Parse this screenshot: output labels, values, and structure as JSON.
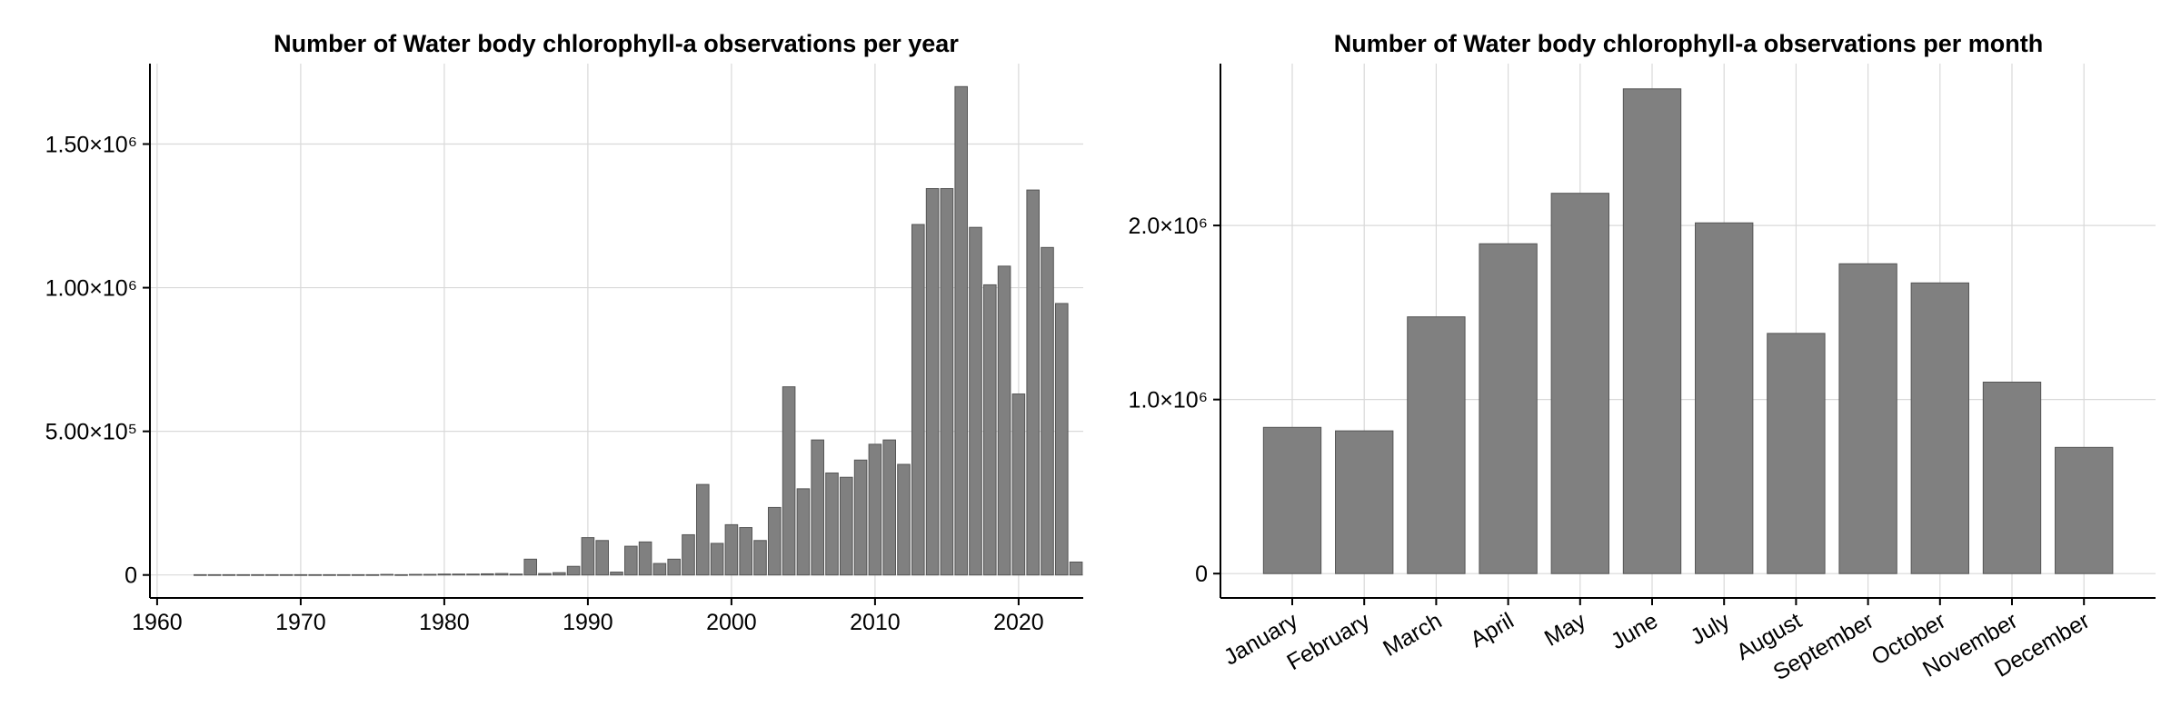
{
  "chart_data": [
    {
      "type": "bar",
      "title": "Number of Water body chlorophyll-a observations per year",
      "xlabel": "",
      "ylabel": "",
      "xlim": [
        1959.5,
        2024.5
      ],
      "ylim": [
        -80000,
        1780000
      ],
      "x_ticks": [
        {
          "value": 1960,
          "label": "1960"
        },
        {
          "value": 1970,
          "label": "1970"
        },
        {
          "value": 1980,
          "label": "1980"
        },
        {
          "value": 1990,
          "label": "1990"
        },
        {
          "value": 2000,
          "label": "2000"
        },
        {
          "value": 2010,
          "label": "2010"
        },
        {
          "value": 2020,
          "label": "2020"
        }
      ],
      "y_ticks": [
        {
          "value": 0,
          "label": "0"
        },
        {
          "value": 500000,
          "label": "5.00×10⁵"
        },
        {
          "value": 1000000,
          "label": "1.00×10⁶"
        },
        {
          "value": 1500000,
          "label": "1.50×10⁶"
        }
      ],
      "grid": true,
      "x": [
        1963,
        1964,
        1965,
        1966,
        1967,
        1968,
        1969,
        1970,
        1971,
        1972,
        1973,
        1974,
        1975,
        1976,
        1977,
        1978,
        1979,
        1980,
        1981,
        1982,
        1983,
        1984,
        1985,
        1986,
        1987,
        1988,
        1989,
        1990,
        1991,
        1992,
        1993,
        1994,
        1995,
        1996,
        1997,
        1998,
        1999,
        2000,
        2001,
        2002,
        2003,
        2004,
        2005,
        2006,
        2007,
        2008,
        2009,
        2010,
        2011,
        2012,
        2013,
        2014,
        2015,
        2016,
        2017,
        2018,
        2019,
        2020,
        2021,
        2022,
        2023,
        2024
      ],
      "values": [
        1000,
        1000,
        1000,
        1000,
        1000,
        1000,
        1000,
        1000,
        1000,
        1000,
        1000,
        1000,
        1000,
        2000,
        1000,
        2000,
        2000,
        3000,
        3000,
        3000,
        4000,
        5000,
        3000,
        55000,
        5000,
        8000,
        30000,
        130000,
        120000,
        10000,
        100000,
        115000,
        40000,
        55000,
        140000,
        315000,
        110000,
        175000,
        165000,
        120000,
        235000,
        655000,
        300000,
        470000,
        355000,
        340000,
        400000,
        455000,
        470000,
        385000,
        1220000,
        1345000,
        1345000,
        1700000,
        1210000,
        1010000,
        1075000,
        630000,
        1340000,
        1140000,
        945000,
        45000
      ]
    },
    {
      "type": "bar",
      "title": "Number of Water body chlorophyll-a observations per month",
      "xlabel": "",
      "ylabel": "",
      "ylim": [
        -140000,
        2930000
      ],
      "categories": [
        "January",
        "February",
        "March",
        "April",
        "May",
        "June",
        "July",
        "August",
        "September",
        "October",
        "November",
        "December"
      ],
      "y_ticks": [
        {
          "value": 0,
          "label": "0"
        },
        {
          "value": 1000000,
          "label": "1.0×10⁶"
        },
        {
          "value": 2000000,
          "label": "2.0×10⁶"
        }
      ],
      "grid": true,
      "values": [
        840000,
        820000,
        1475000,
        1895000,
        2185000,
        2785000,
        2015000,
        1380000,
        1780000,
        1670000,
        1100000,
        725000
      ]
    }
  ]
}
